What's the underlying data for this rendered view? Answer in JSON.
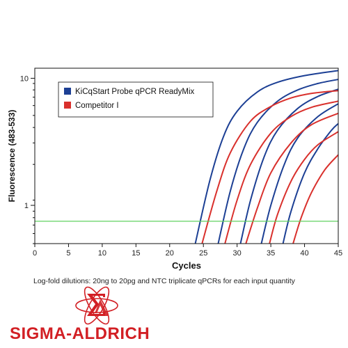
{
  "chart_data": {
    "type": "line",
    "title": "",
    "xlabel": "Cycles",
    "ylabel": "Fluorescence (483-533)",
    "xlim": [
      0,
      45
    ],
    "ylim": [
      0.5,
      12
    ],
    "y_scale": "log",
    "x_ticks": [
      0,
      5,
      10,
      15,
      20,
      25,
      30,
      35,
      40,
      45
    ],
    "y_ticks": [
      1,
      10
    ],
    "y_tick_labels": [
      "1",
      "10"
    ],
    "threshold": 0.75,
    "grid": false,
    "legend_position": "top-left",
    "legend": [
      {
        "label": "KiCqStart Probe qPCR ReadyMix",
        "color": "#1c3f94"
      },
      {
        "label": "Competitor I",
        "color": "#d9302c"
      }
    ],
    "series": [
      {
        "name": "KiCqStart Probe qPCR ReadyMix",
        "color": "#1c3f94",
        "curves": [
          {
            "x": [
              23.8,
              26,
              28,
              30,
              33,
              36,
              40,
              45
            ],
            "y": [
              0.5,
              1.6,
              3.5,
              5.5,
              7.8,
              9.3,
              10.5,
              11.5
            ]
          },
          {
            "x": [
              27.2,
              29,
              31,
              33,
              36,
              39,
              42,
              45
            ],
            "y": [
              0.5,
              1.3,
              2.8,
              4.5,
              6.6,
              8.1,
              9.1,
              9.8
            ]
          },
          {
            "x": [
              30.5,
              32,
              34,
              36,
              39,
              42,
              45
            ],
            "y": [
              0.5,
              1.1,
              2.4,
              3.9,
              5.8,
              7.2,
              8.2
            ]
          },
          {
            "x": [
              33.6,
              35,
              37,
              39,
              42,
              45
            ],
            "y": [
              0.5,
              1.0,
              2.1,
              3.4,
              5.0,
              6.3
            ]
          },
          {
            "x": [
              36.8,
              38,
              40,
              42,
              44,
              45
            ],
            "y": [
              0.5,
              0.9,
              1.8,
              2.8,
              3.9,
              4.4
            ]
          }
        ]
      },
      {
        "name": "Competitor I",
        "color": "#d9302c",
        "curves": [
          {
            "x": [
              24.8,
              27,
              29,
              32,
              35,
              38,
              41,
              45
            ],
            "y": [
              0.5,
              1.3,
              2.6,
              4.6,
              6.0,
              7.0,
              7.6,
              8.0
            ]
          },
          {
            "x": [
              28.2,
              30,
              32,
              35,
              38,
              41,
              45
            ],
            "y": [
              0.5,
              1.1,
              2.1,
              3.7,
              5.0,
              5.9,
              6.6
            ]
          },
          {
            "x": [
              31.3,
              33,
              35,
              38,
              41,
              45
            ],
            "y": [
              0.5,
              0.95,
              1.8,
              3.1,
              4.3,
              5.3
            ]
          },
          {
            "x": [
              34.8,
              36,
              38,
              40,
              42,
              45
            ],
            "y": [
              0.5,
              0.85,
              1.55,
              2.3,
              3.0,
              3.8
            ]
          },
          {
            "x": [
              38.3,
              39.5,
              41,
              43,
              45
            ],
            "y": [
              0.5,
              0.8,
              1.25,
              1.9,
              2.5
            ]
          }
        ]
      }
    ]
  },
  "caption": "Log-fold dilutions: 20ng to 20pg and NTC triplicate qPCRs for each input quantity",
  "logo": {
    "text": "SIGMA-ALDRICH",
    "color": "#d21f24"
  }
}
